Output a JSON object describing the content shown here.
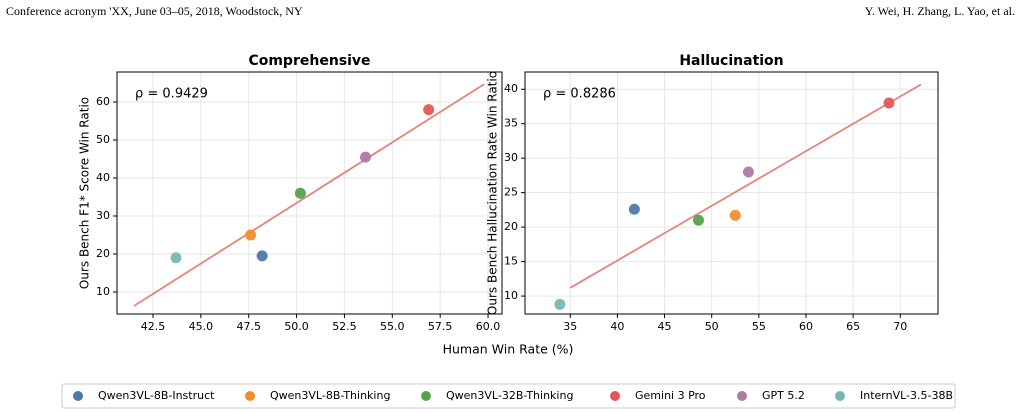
{
  "header": {
    "left": "Conference acronym 'XX, June 03–05, 2018, Woodstock, NY",
    "right": "Y. Wei, H. Zhang, L. Yao, et al."
  },
  "chart_data": [
    {
      "type": "scatter",
      "title": "Comprehensive",
      "ylabel": "Ours Bench F1* Score Win Ratio",
      "xlabel": "Human Win Rate (%)",
      "annotation": "ρ = 0.9429",
      "grid": true,
      "xlim": [
        40.62,
        60.73
      ],
      "ylim": [
        4.2,
        67.9
      ],
      "xticks": [
        42.5,
        {
          "value": 45,
          "label": "45.0"
        },
        47.5,
        {
          "value": 50,
          "label": "50.0"
        },
        52.5,
        {
          "value": 55,
          "label": "55.0"
        },
        57.5,
        {
          "value": 60,
          "label": "60.0"
        }
      ],
      "yticks": [
        10,
        20,
        30,
        40,
        50,
        60
      ],
      "fit": {
        "color": "#e8837b",
        "x": [
          41.5,
          59.8
        ],
        "y": [
          6.3,
          64.7
        ]
      },
      "series": [
        {
          "name": "Qwen3VL-8B-Instruct",
          "color": "#4e79a7",
          "x": [
            48.2
          ],
          "values": [
            19.5
          ]
        },
        {
          "name": "Qwen3VL-8B-Thinking",
          "color": "#f28e2b",
          "x": [
            47.6
          ],
          "values": [
            25
          ]
        },
        {
          "name": "Qwen3VL-32B-Thinking",
          "color": "#59a14f",
          "x": [
            50.2
          ],
          "values": [
            36
          ]
        },
        {
          "name": "Gemini 3 Pro",
          "color": "#e15759",
          "x": [
            56.9
          ],
          "values": [
            58
          ]
        },
        {
          "name": "GPT 5.2",
          "color": "#b07aa1",
          "x": [
            53.6
          ],
          "values": [
            45.5
          ]
        },
        {
          "name": "InternVL-3.5-38B",
          "color": "#76b7b2",
          "x": [
            43.7
          ],
          "values": [
            19
          ]
        }
      ]
    },
    {
      "type": "scatter",
      "title": "Hallucination",
      "ylabel": "Ours Bench Hallucination Rate Win Ratio",
      "annotation": "ρ = 0.8286",
      "grid": true,
      "xlim": [
        30.2,
        74.0
      ],
      "ylim": [
        7.4,
        42.5
      ],
      "xticks": [
        35,
        40,
        45,
        50,
        55,
        60,
        65,
        70
      ],
      "yticks": [
        10,
        15,
        20,
        25,
        30,
        35,
        40
      ],
      "fit": {
        "color": "#e8837b",
        "x": [
          35,
          72.2
        ],
        "y": [
          11.2,
          40.7
        ]
      },
      "series": [
        {
          "color": "#4e79a7",
          "x": [
            41.8
          ],
          "values": [
            22.6
          ]
        },
        {
          "color": "#f28e2b",
          "x": [
            52.5
          ],
          "values": [
            21.7
          ]
        },
        {
          "color": "#59a14f",
          "x": [
            48.6
          ],
          "values": [
            21.0
          ]
        },
        {
          "color": "#e15759",
          "x": [
            68.8
          ],
          "values": [
            38.0
          ]
        },
        {
          "color": "#b07aa1",
          "x": [
            53.9
          ],
          "values": [
            28.0
          ]
        },
        {
          "color": "#76b7b2",
          "x": [
            33.9
          ],
          "values": [
            8.8
          ]
        }
      ]
    }
  ]
}
